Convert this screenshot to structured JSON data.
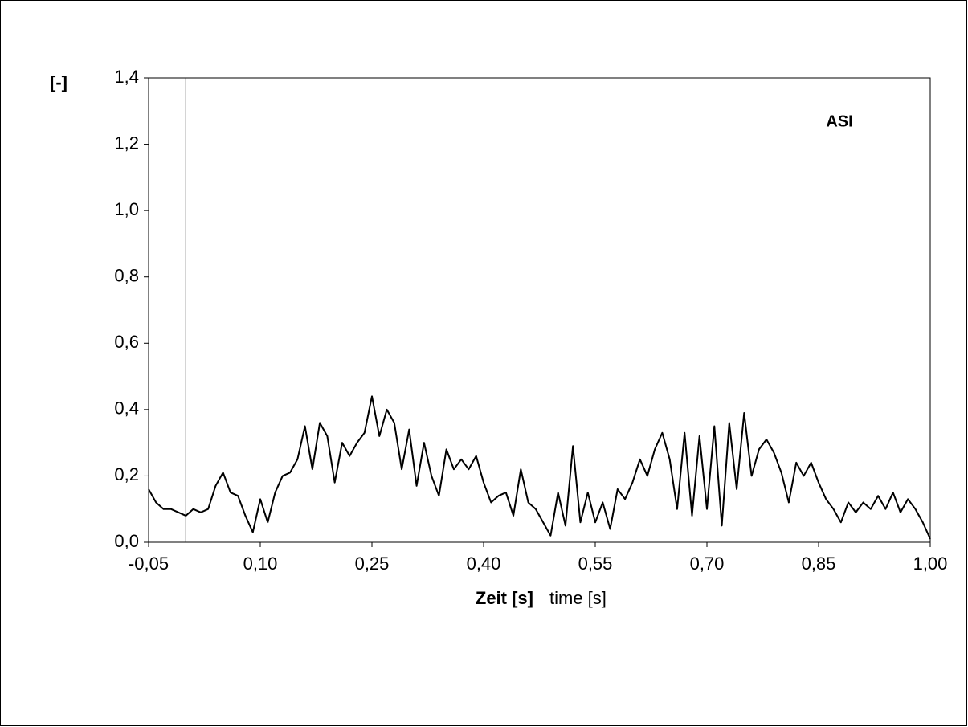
{
  "chart_data": {
    "type": "line",
    "annotation": "ASI",
    "y_label": "[-]",
    "x_label": "Zeit [s]",
    "x_label_english": "time [s]",
    "xlim": [
      -0.05,
      1.0
    ],
    "ylim": [
      0,
      1.4
    ],
    "xticks": [
      {
        "value": -0.05,
        "label": "-0,05"
      },
      {
        "value": 0.1,
        "label": "0,10"
      },
      {
        "value": 0.25,
        "label": "0,25"
      },
      {
        "value": 0.4,
        "label": "0,40"
      },
      {
        "value": 0.55,
        "label": "0,55"
      },
      {
        "value": 0.7,
        "label": "0,70"
      },
      {
        "value": 0.85,
        "label": "0,85"
      },
      {
        "value": 1.0,
        "label": "1,00"
      }
    ],
    "yticks": [
      {
        "value": 0,
        "label": "0,0"
      },
      {
        "value": 0.2,
        "label": "0,2"
      },
      {
        "value": 0.4,
        "label": "0,4"
      },
      {
        "value": 0.6,
        "label": "0,6"
      },
      {
        "value": 0.8,
        "label": "0,8"
      },
      {
        "value": 1.0,
        "label": "1,0"
      },
      {
        "value": 1.2,
        "label": "1,2"
      },
      {
        "value": 1.4,
        "label": "1,4"
      }
    ],
    "vertical_line_x": 0,
    "grid": false,
    "x": [
      -0.05,
      -0.04,
      -0.03,
      -0.02,
      -0.01,
      0.0,
      0.01,
      0.02,
      0.03,
      0.04,
      0.05,
      0.06,
      0.07,
      0.08,
      0.09,
      0.1,
      0.11,
      0.12,
      0.13,
      0.14,
      0.15,
      0.16,
      0.17,
      0.18,
      0.19,
      0.2,
      0.21,
      0.22,
      0.23,
      0.24,
      0.25,
      0.26,
      0.27,
      0.28,
      0.29,
      0.3,
      0.31,
      0.32,
      0.33,
      0.34,
      0.35,
      0.36,
      0.37,
      0.38,
      0.39,
      0.4,
      0.41,
      0.42,
      0.43,
      0.44,
      0.45,
      0.46,
      0.47,
      0.48,
      0.49,
      0.5,
      0.51,
      0.52,
      0.53,
      0.54,
      0.55,
      0.56,
      0.57,
      0.58,
      0.59,
      0.6,
      0.61,
      0.62,
      0.63,
      0.64,
      0.65,
      0.66,
      0.67,
      0.68,
      0.69,
      0.7,
      0.71,
      0.72,
      0.73,
      0.74,
      0.75,
      0.76,
      0.77,
      0.78,
      0.79,
      0.8,
      0.81,
      0.82,
      0.83,
      0.84,
      0.85,
      0.86,
      0.87,
      0.88,
      0.89,
      0.9,
      0.91,
      0.92,
      0.93,
      0.94,
      0.95,
      0.96,
      0.97,
      0.98,
      0.99,
      1.0
    ],
    "series": [
      {
        "color": "#000000",
        "values": [
          0.16,
          0.12,
          0.1,
          0.1,
          0.09,
          0.08,
          0.1,
          0.09,
          0.1,
          0.17,
          0.21,
          0.15,
          0.14,
          0.08,
          0.03,
          0.13,
          0.06,
          0.15,
          0.2,
          0.21,
          0.25,
          0.35,
          0.22,
          0.36,
          0.32,
          0.18,
          0.3,
          0.26,
          0.3,
          0.33,
          0.44,
          0.32,
          0.4,
          0.36,
          0.22,
          0.34,
          0.17,
          0.3,
          0.2,
          0.14,
          0.28,
          0.22,
          0.25,
          0.22,
          0.26,
          0.18,
          0.12,
          0.14,
          0.15,
          0.08,
          0.22,
          0.12,
          0.1,
          0.06,
          0.02,
          0.15,
          0.05,
          0.29,
          0.06,
          0.15,
          0.06,
          0.12,
          0.04,
          0.16,
          0.13,
          0.18,
          0.25,
          0.2,
          0.28,
          0.33,
          0.25,
          0.1,
          0.33,
          0.08,
          0.32,
          0.1,
          0.35,
          0.05,
          0.36,
          0.16,
          0.39,
          0.2,
          0.28,
          0.31,
          0.27,
          0.21,
          0.12,
          0.24,
          0.2,
          0.24,
          0.18,
          0.13,
          0.1,
          0.06,
          0.12,
          0.09,
          0.12,
          0.1,
          0.14,
          0.1,
          0.15,
          0.09,
          0.13,
          0.1,
          0.06,
          0.01
        ]
      }
    ]
  }
}
